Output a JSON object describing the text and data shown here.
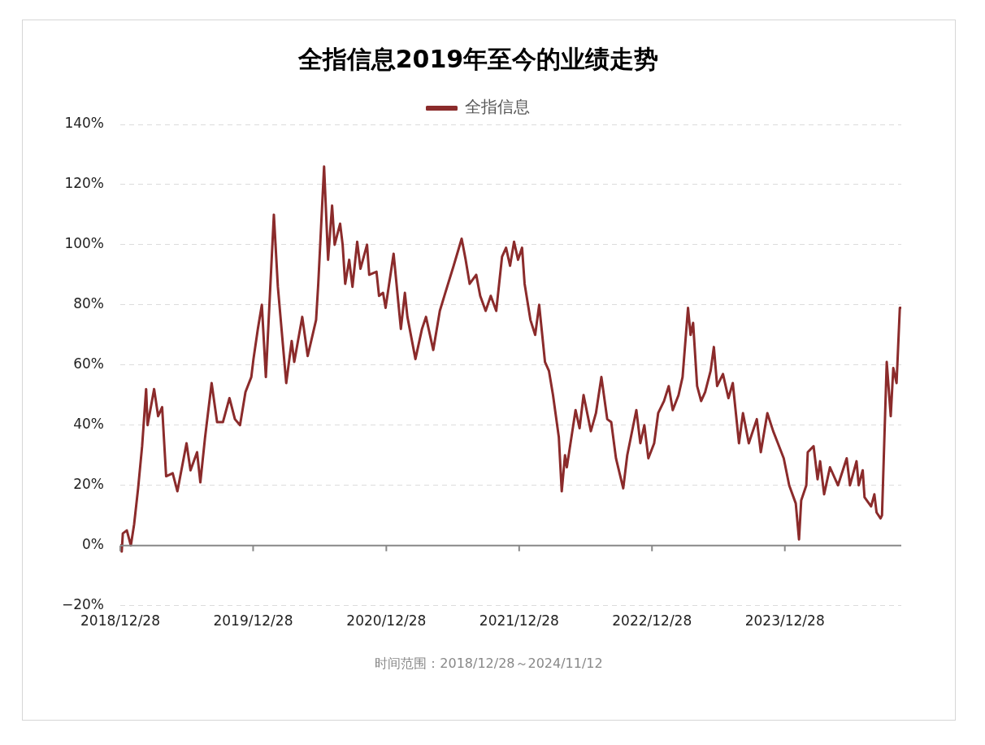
{
  "chart_data": {
    "type": "line",
    "title": "全指信息2019年至今的业绩走势",
    "x": [
      "2018-12-28",
      "2019-01-01",
      "2019-01-04",
      "2019-01-15",
      "2019-01-26",
      "2019-02-04",
      "2019-02-15",
      "2019-02-26",
      "2019-03-09",
      "2019-03-13",
      "2019-03-31",
      "2019-04-11",
      "2019-04-22",
      "2019-05-03",
      "2019-05-21",
      "2019-06-03",
      "2019-06-28",
      "2019-07-09",
      "2019-07-27",
      "2019-08-05",
      "2019-08-18",
      "2019-09-05",
      "2019-09-20",
      "2019-10-06",
      "2019-10-24",
      "2019-11-08",
      "2019-11-22",
      "2019-12-07",
      "2019-12-23",
      "2019-12-29",
      "2020-01-10",
      "2020-01-21",
      "2020-02-01",
      "2020-02-23",
      "2020-03-05",
      "2020-03-28",
      "2020-04-12",
      "2020-04-19",
      "2020-05-11",
      "2020-05-26",
      "2020-06-18",
      "2020-06-24",
      "2020-07-10",
      "2020-07-21",
      "2020-08-01",
      "2020-08-08",
      "2020-08-23",
      "2020-08-30",
      "2020-09-06",
      "2020-09-17",
      "2020-09-26",
      "2020-10-09",
      "2020-10-18",
      "2020-11-05",
      "2020-11-11",
      "2020-12-01",
      "2020-12-08",
      "2020-12-19",
      "2020-12-26",
      "2021-01-17",
      "2021-02-06",
      "2021-02-17",
      "2021-02-24",
      "2021-03-18",
      "2021-04-05",
      "2021-04-16",
      "2021-05-06",
      "2021-05-24",
      "2021-06-08",
      "2021-07-01",
      "2021-07-23",
      "2021-08-03",
      "2021-08-14",
      "2021-09-01",
      "2021-09-12",
      "2021-09-27",
      "2021-10-11",
      "2021-10-26",
      "2021-11-11",
      "2021-11-22",
      "2021-12-03",
      "2021-12-14",
      "2021-12-25",
      "2022-01-05",
      "2022-01-12",
      "2022-01-28",
      "2022-02-10",
      "2022-02-21",
      "2022-03-09",
      "2022-03-20",
      "2022-03-31",
      "2022-04-16",
      "2022-04-24",
      "2022-05-03",
      "2022-05-08",
      "2022-06-01",
      "2022-06-12",
      "2022-06-23",
      "2022-07-13",
      "2022-07-27",
      "2022-08-11",
      "2022-08-27",
      "2022-09-07",
      "2022-09-20",
      "2022-10-10",
      "2022-10-21",
      "2022-11-15",
      "2022-11-26",
      "2022-12-07",
      "2022-12-18",
      "2023-01-03",
      "2023-01-14",
      "2023-01-30",
      "2023-02-12",
      "2023-02-23",
      "2023-03-11",
      "2023-03-22",
      "2023-04-06",
      "2023-04-13",
      "2023-04-20",
      "2023-05-01",
      "2023-05-12",
      "2023-05-23",
      "2023-06-07",
      "2023-06-16",
      "2023-06-25",
      "2023-07-11",
      "2023-07-26",
      "2023-08-07",
      "2023-08-24",
      "2023-09-04",
      "2023-09-20",
      "2023-10-12",
      "2023-10-23",
      "2023-11-10",
      "2023-11-26",
      "2023-12-09",
      "2023-12-25",
      "2024-01-09",
      "2024-01-27",
      "2024-02-05",
      "2024-02-11",
      "2024-02-25",
      "2024-02-29",
      "2024-03-16",
      "2024-03-27",
      "2024-04-03",
      "2024-04-14",
      "2024-04-30",
      "2024-05-22",
      "2024-06-15",
      "2024-06-24",
      "2024-07-12",
      "2024-07-18",
      "2024-07-29",
      "2024-08-03",
      "2024-08-21",
      "2024-08-30",
      "2024-09-05",
      "2024-09-16",
      "2024-09-20",
      "2024-10-03",
      "2024-10-14",
      "2024-10-21",
      "2024-10-30",
      "2024-11-08",
      "2024-11-12"
    ],
    "series": [
      {
        "name": "全指信息",
        "color": "#8b2b2b",
        "values": [
          0,
          -2,
          4,
          5,
          0,
          7,
          19,
          33,
          52,
          40,
          52,
          43,
          46,
          23,
          24,
          18,
          34,
          25,
          31,
          21,
          36,
          54,
          41,
          41,
          49,
          42,
          40,
          51,
          56,
          62,
          72,
          80,
          56,
          110,
          86,
          54,
          68,
          61,
          76,
          63,
          75,
          87,
          126,
          95,
          113,
          100,
          107,
          100,
          87,
          95,
          86,
          101,
          92,
          100,
          90,
          91,
          83,
          84,
          79,
          97,
          72,
          84,
          76,
          62,
          72,
          76,
          65,
          78,
          84,
          93,
          102,
          95,
          87,
          90,
          83,
          78,
          83,
          78,
          96,
          99,
          93,
          101,
          95,
          99,
          87,
          75,
          70,
          80,
          61,
          58,
          50,
          36,
          18,
          30,
          26,
          45,
          39,
          50,
          38,
          44,
          56,
          42,
          41,
          29,
          19,
          30,
          45,
          34,
          40,
          29,
          34,
          44,
          48,
          53,
          45,
          50,
          56,
          79,
          70,
          74,
          53,
          48,
          51,
          58,
          66,
          53,
          57,
          49,
          54,
          34,
          44,
          34,
          42,
          31,
          44,
          38,
          34,
          29,
          20,
          14,
          2,
          15,
          20,
          31,
          33,
          22,
          28,
          17,
          26,
          20,
          29,
          20,
          28,
          20,
          25,
          16,
          13,
          17,
          11,
          9,
          10,
          61,
          43,
          59,
          54,
          79,
          79
        ]
      }
    ],
    "xlim": [
      "2018-12-28",
      "2024-11-12"
    ],
    "xticks": [
      {
        "value": "2018-12-28",
        "label": "2018/12/28"
      },
      {
        "value": "2019-12-28",
        "label": "2019/12/28"
      },
      {
        "value": "2020-12-28",
        "label": "2020/12/28"
      },
      {
        "value": "2021-12-28",
        "label": "2021/12/28"
      },
      {
        "value": "2022-12-28",
        "label": "2022/12/28"
      },
      {
        "value": "2023-12-28",
        "label": "2023/12/28"
      }
    ],
    "ylim": [
      -20,
      140
    ],
    "yticks": [
      {
        "value": -20,
        "label": "−20%"
      },
      {
        "value": 0,
        "label": "0%"
      },
      {
        "value": 20,
        "label": "20%"
      },
      {
        "value": 40,
        "label": "40%"
      },
      {
        "value": 60,
        "label": "60%"
      },
      {
        "value": 80,
        "label": "80%"
      },
      {
        "value": 100,
        "label": "100%"
      },
      {
        "value": 120,
        "label": "120%"
      },
      {
        "value": 140,
        "label": "140%"
      }
    ],
    "grid": "y",
    "legend": "top",
    "marker": "none",
    "line_style": "solid",
    "annotations": [
      "时间范围：2018/12/28～2024/11/12"
    ]
  }
}
